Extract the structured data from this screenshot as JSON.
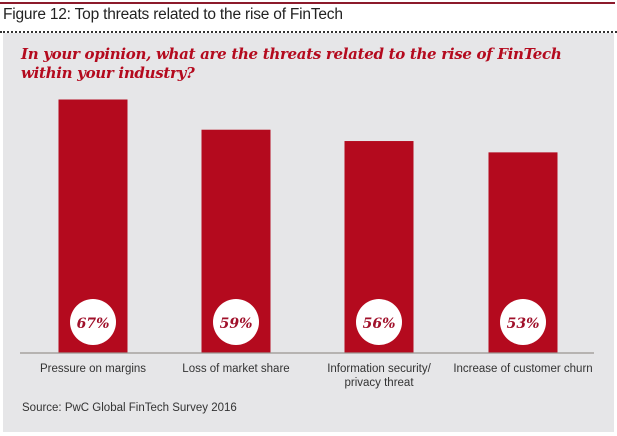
{
  "figure": {
    "title": "Figure 12: Top threats related to the rise of FinTech",
    "question": "In your opinion, what are the threats related to the rise of FinTech within your industry?",
    "source": "Source: PwC Global FinTech Survey 2016"
  },
  "colors": {
    "bar": "#b40a1e",
    "accent_rule": "#8c1a2b",
    "panel": "#e6e6e8",
    "label_circle": "#ffffff",
    "value_text": "#a0102a",
    "axis": "#9a9590"
  },
  "chart_data": {
    "type": "bar",
    "title": "In your opinion, what are the threats related to the rise of FinTech within your industry?",
    "xlabel": "",
    "ylabel": "",
    "ylim": [
      0,
      67
    ],
    "grid": false,
    "categories": [
      "Pressure on margins",
      "Loss of market share",
      "Information security/ privacy threat",
      "Increase of customer churn"
    ],
    "category_lines": [
      [
        "Pressure on margins"
      ],
      [
        "Loss of market share"
      ],
      [
        "Information security/",
        "privacy threat"
      ],
      [
        "Increase of customer churn"
      ]
    ],
    "values": [
      67,
      59,
      56,
      53
    ],
    "value_labels": [
      "67%",
      "59%",
      "56%",
      "53%"
    ]
  }
}
